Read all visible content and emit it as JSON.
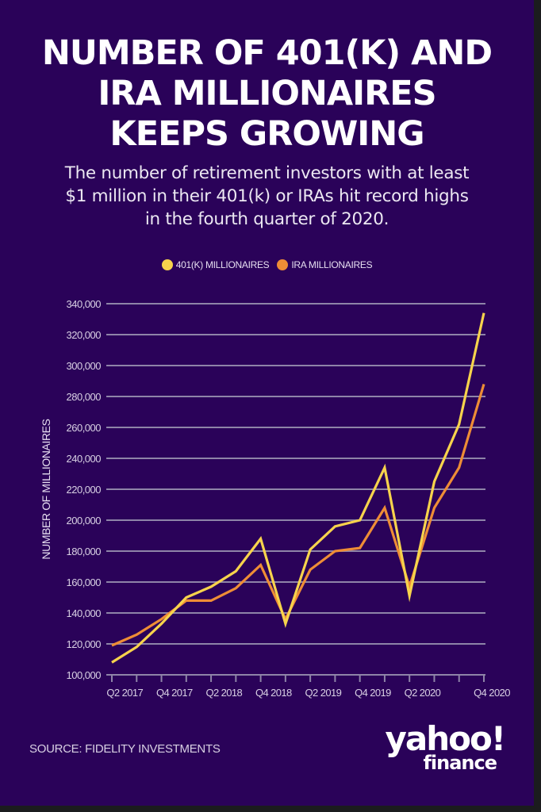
{
  "colors": {
    "background": "#2a0259",
    "frame": "#1b1c1e",
    "series_401k": "#f7d34c",
    "series_ira": "#ee8d36",
    "grid": "#8e84a8",
    "text": "#ffffff",
    "axis_text": "#d8d0e3"
  },
  "header": {
    "title_lines": [
      "NUMBER OF 401(K) AND",
      "IRA MILLIONAIRES",
      "KEEPS GROWING"
    ],
    "subtitle_lines": [
      "The number of retirement investors with at least",
      "$1 million in their 401(k) or IRAs hit record highs",
      "in the fourth quarter of 2020."
    ]
  },
  "footer": {
    "source": "SOURCE: FIDELITY INVESTMENTS",
    "logo_top": "yahoo!",
    "logo_bottom": "finance"
  },
  "chart_data": {
    "type": "line",
    "title": "NUMBER OF 401(K) AND IRA MILLIONAIRES KEEPS GROWING",
    "xlabel": "",
    "ylabel": "NUMBER OF MILLIONAIRES",
    "ylim": [
      100000,
      340000
    ],
    "yticks": [
      100000,
      120000,
      140000,
      160000,
      180000,
      200000,
      220000,
      240000,
      260000,
      280000,
      300000,
      320000,
      340000
    ],
    "ytick_labels": [
      "100,000",
      "120,000",
      "140,000",
      "160,000",
      "180,000",
      "200,000",
      "220,000",
      "240,000",
      "260,000",
      "280,000",
      "300,000",
      "320,000",
      "340,000"
    ],
    "grid": true,
    "legend_position": "top-center",
    "x": [
      "Q1 2017",
      "Q2 2017",
      "Q3 2017",
      "Q4 2017",
      "Q1 2018",
      "Q2 2018",
      "Q3 2018",
      "Q4 2018",
      "Q1 2019",
      "Q2 2019",
      "Q3 2019",
      "Q4 2019",
      "Q1 2020",
      "Q2 2020",
      "Q3 2020",
      "Q4 2020"
    ],
    "xtick_labels": [
      "Q2 2017",
      "Q4 2017",
      "Q2 2018",
      "Q4 2018",
      "Q2 2019",
      "Q4 2019",
      "Q2 2020",
      "Q4 2020"
    ],
    "series": [
      {
        "name": "401(K) MILLIONAIRES",
        "color": "#f7d34c",
        "values": [
          108000,
          118000,
          133000,
          150000,
          157000,
          167000,
          188000,
          133000,
          181000,
          196000,
          200000,
          234000,
          151000,
          225000,
          262000,
          334000
        ]
      },
      {
        "name": "IRA MILLIONAIRES",
        "color": "#ee8d36",
        "values": [
          119000,
          126000,
          136000,
          148000,
          148000,
          156000,
          171000,
          136000,
          168000,
          180000,
          182000,
          208000,
          157000,
          208000,
          234000,
          288000
        ]
      }
    ]
  }
}
